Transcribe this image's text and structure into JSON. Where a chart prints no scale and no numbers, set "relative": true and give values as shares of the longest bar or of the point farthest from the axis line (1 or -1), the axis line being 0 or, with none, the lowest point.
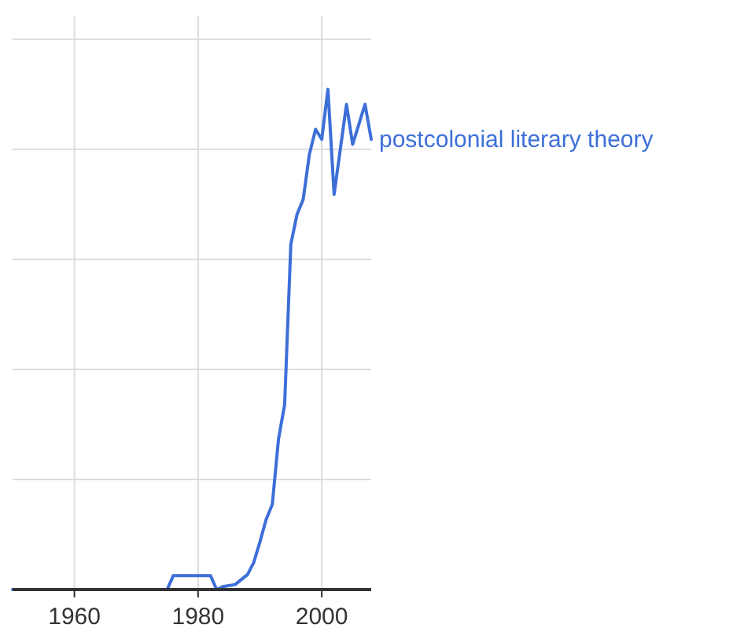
{
  "chart_data": {
    "type": "line",
    "relative": true,
    "x": [
      1950,
      1975,
      1976,
      1982,
      1983,
      1984,
      1986,
      1988,
      1989,
      1990,
      1991,
      1992,
      1993,
      1994,
      1995,
      1996,
      1997,
      1998,
      1999,
      2000,
      2001,
      2002,
      2003,
      2004,
      2005,
      2006,
      2007,
      2008
    ],
    "xlim": [
      1950,
      2008
    ],
    "xticks": [
      1960,
      1980,
      2000
    ],
    "grid": true,
    "legend": false,
    "series": [
      {
        "name": "postcolonial literary theory",
        "color": "#3d6fd8",
        "values": [
          0,
          0,
          0.028,
          0.028,
          0,
          0.006,
          0.01,
          0.03,
          0.054,
          0.095,
          0.14,
          0.17,
          0.3,
          0.37,
          0.69,
          0.75,
          0.78,
          0.87,
          0.92,
          0.9,
          1,
          0.79,
          0.88,
          0.97,
          0.89,
          0.93,
          0.97,
          0.9
        ]
      }
    ]
  }
}
